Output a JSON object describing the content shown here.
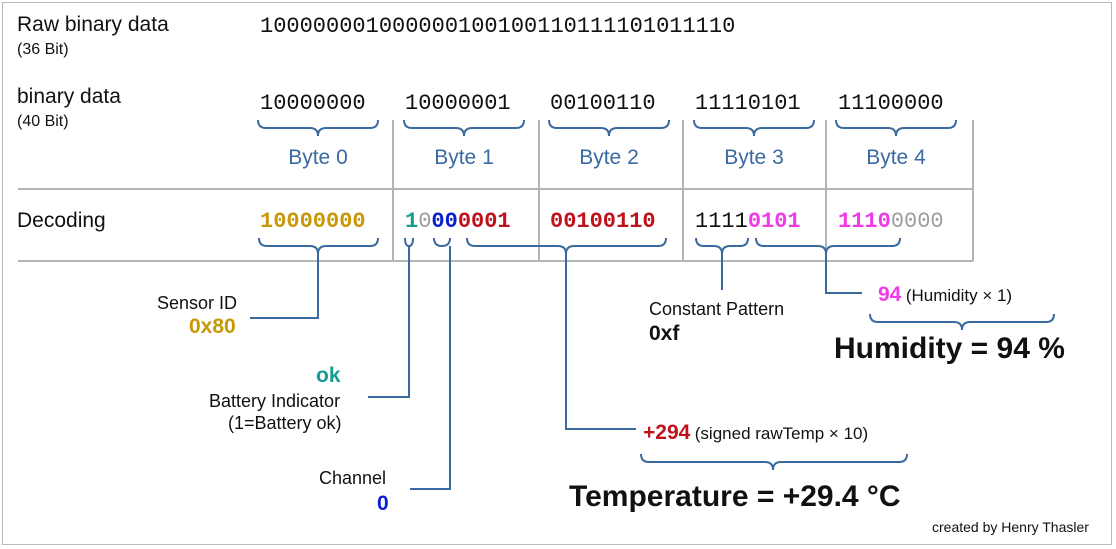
{
  "raw": {
    "label": "Raw binary data",
    "sublabel": "(36 Bit)",
    "bits": "100000001000000100100110111101011110"
  },
  "binary": {
    "label": "binary data",
    "sublabel": "(40 Bit)",
    "bytes": [
      "10000000",
      "10000001",
      "00100110",
      "11110101",
      "11100000"
    ],
    "byte_labels": [
      "Byte 0",
      "Byte 1",
      "Byte 2",
      "Byte 3",
      "Byte 4"
    ]
  },
  "decoding": {
    "label": "Decoding",
    "b0": "10000000",
    "b1_battery": "1",
    "b1_unused": "0",
    "b1_channel": "00",
    "b1_temp": "0001",
    "b2_temp": "00100110",
    "b3_const": "1111",
    "b3_hum": "0101",
    "b4_hum": "1110",
    "b4_unused": "0000"
  },
  "sensor": {
    "label": "Sensor ID",
    "value": "0x80"
  },
  "battery": {
    "value": "ok",
    "label": "Battery Indicator",
    "note": "(1=Battery ok)"
  },
  "channel": {
    "label": "Channel",
    "value": "0"
  },
  "constant": {
    "label": "Constant Pattern",
    "value": "0xf"
  },
  "humidity": {
    "value": "94",
    "formula": "(Humidity × 1)",
    "result": "Humidity = 94 %"
  },
  "temperature": {
    "value": "+294",
    "formula": "(signed rawTemp × 10)",
    "result": "Temperature = +29.4 °C"
  },
  "credit": "created by Henry Thasler",
  "colors": {
    "sensor": "#c7980a",
    "battery": "#149c92",
    "channel": "#0b1fd0",
    "temperature": "#c0121c",
    "humidity": "#ef3ae6",
    "unused": "#9e9e9e",
    "connector": "#3b6aa0"
  }
}
